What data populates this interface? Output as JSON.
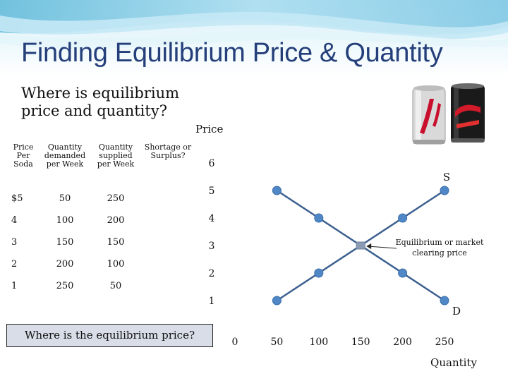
{
  "title": "Finding Equilibrium Price & Quantity",
  "question": "Where is equilibrium price and quantity?",
  "table": {
    "headers": [
      "Price Per Soda",
      "Quantity demanded per Week",
      "Quantity supplied per Week",
      "Shortage or Surplus?"
    ],
    "rows": [
      [
        "$5",
        "50",
        "250",
        ""
      ],
      [
        "4",
        "100",
        "200",
        ""
      ],
      [
        "3",
        "150",
        "150",
        ""
      ],
      [
        "2",
        "200",
        "100",
        ""
      ],
      [
        "1",
        "250",
        "50",
        ""
      ]
    ]
  },
  "prompt_box": "Where is the equilibrium price?",
  "colors": {
    "title": "#243f7a",
    "line": "#3b5f8f",
    "point": "#4f87c7",
    "equilibrium_point": "#8a9bb5"
  },
  "icons": [
    "diet-coke-can",
    "coke-zero-can"
  ],
  "chart_data": {
    "type": "line",
    "title": "",
    "xlabel": "Quantity",
    "ylabel": "Price",
    "x_ticks": [
      "0",
      "50",
      "100",
      "150",
      "200",
      "250"
    ],
    "y_ticks": [
      "1",
      "2",
      "3",
      "4",
      "5",
      "6"
    ],
    "series": [
      {
        "name": "S",
        "points": [
          [
            50,
            1
          ],
          [
            100,
            2
          ],
          [
            150,
            3
          ],
          [
            200,
            4
          ],
          [
            250,
            5
          ]
        ]
      },
      {
        "name": "D",
        "points": [
          [
            50,
            5
          ],
          [
            100,
            4
          ],
          [
            150,
            3
          ],
          [
            200,
            2
          ],
          [
            250,
            1
          ]
        ]
      }
    ],
    "equilibrium": {
      "quantity": 150,
      "price": 3
    },
    "annotation": "Equilibrium or market clearing price"
  }
}
